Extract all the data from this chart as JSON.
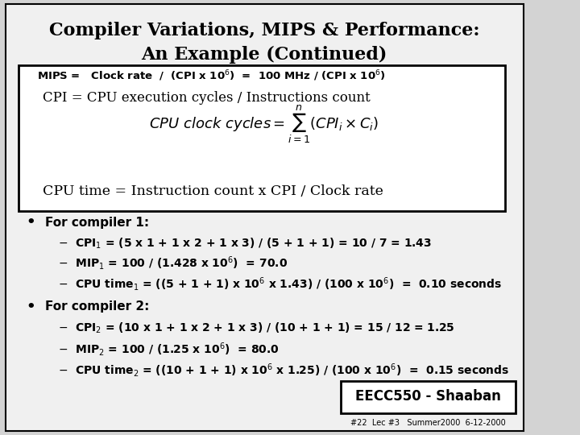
{
  "title_line1": "Compiler Variations, MIPS & Performance:",
  "title_line2": "An Example (Continued)",
  "bg_color": "#d3d3d3",
  "slide_bg": "#f0f0f0",
  "box_bg": "#ffffff",
  "title_bg": "#ffffff",
  "mips_line": "MIPS =   Clock rate  /  (CPI x 10",
  "mips_sup": "6",
  "mips_line2": ")  =  100 MHz / (CPI x 10",
  "footer_text": "EECC550 - Shaaban",
  "footer_sub": "#22  Lec #3   Summer2000  6-12-2000"
}
